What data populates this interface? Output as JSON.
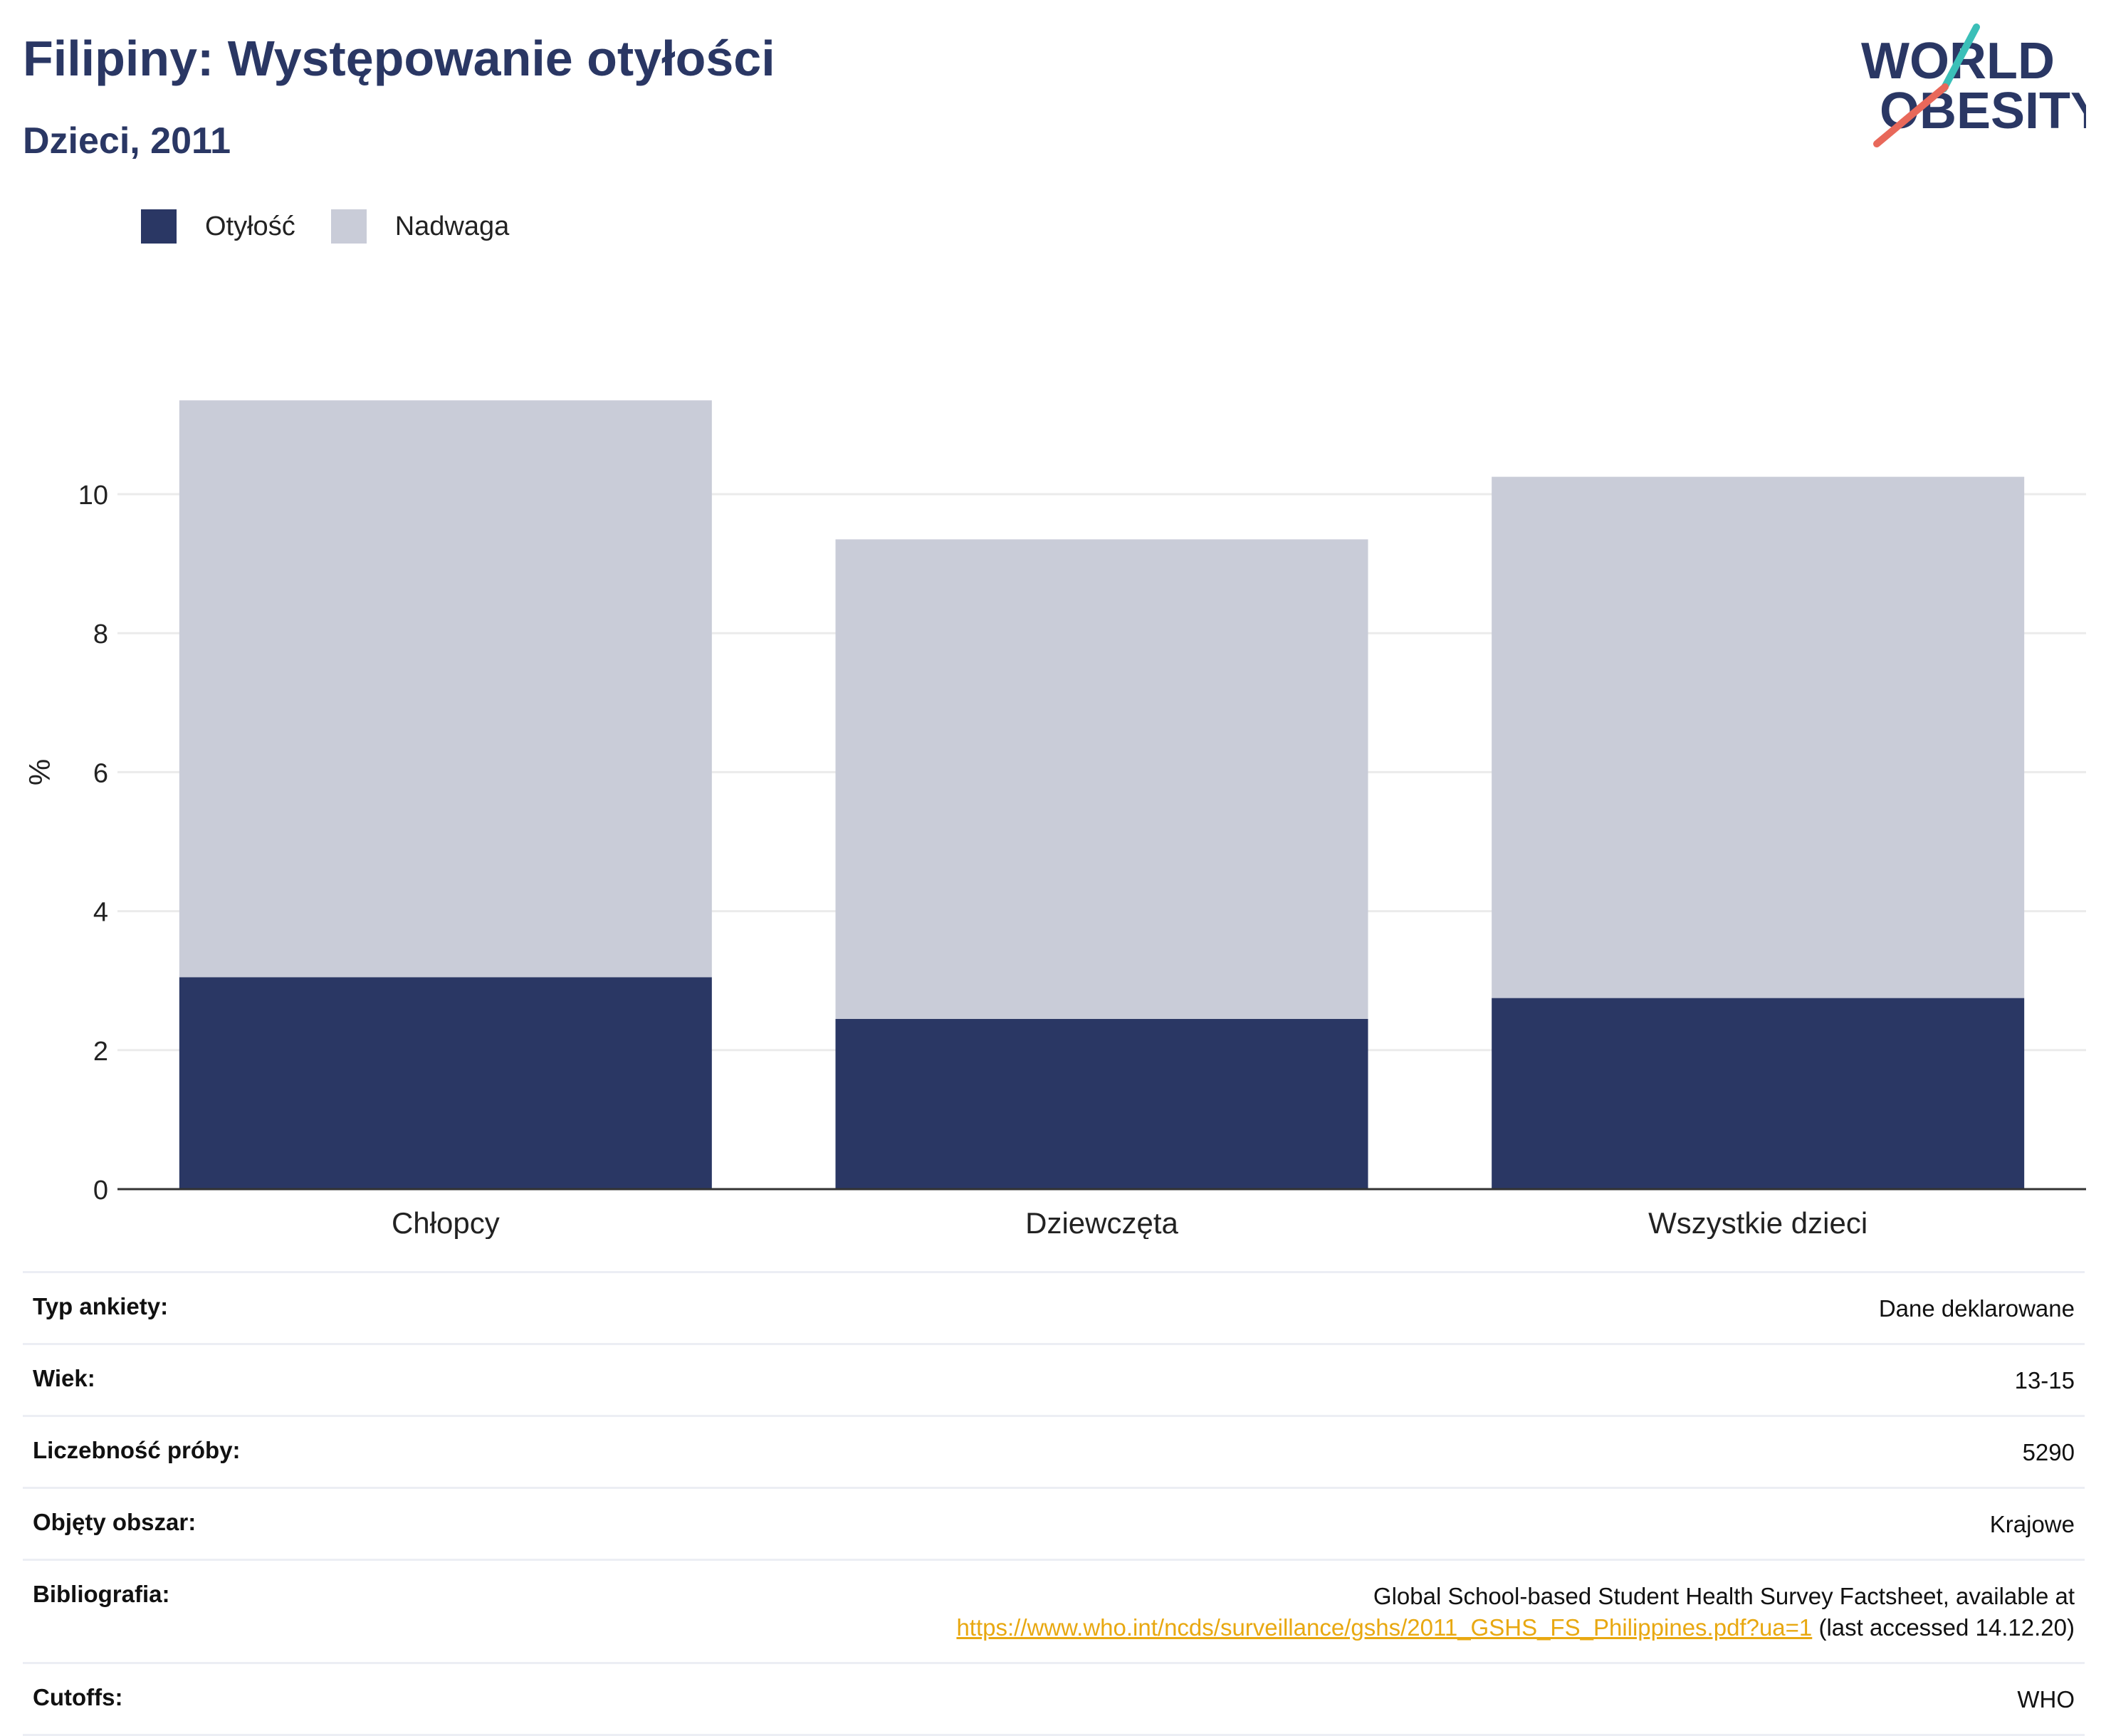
{
  "header": {
    "title": "Filipiny: Występowanie otyłości",
    "subtitle": "Dzieci, 2011"
  },
  "logo": {
    "line1": "WORLD",
    "line2": "OBESITY",
    "name": "world-obesity-logo"
  },
  "colors": {
    "obesity": "#2a3764",
    "overweight": "#c9ccd8",
    "title": "#2a3764",
    "link": "#e8a811"
  },
  "chart_data": {
    "type": "bar",
    "stacked": true,
    "categories": [
      "Chłopcy",
      "Dziewczęta",
      "Wszystkie dzieci"
    ],
    "series": [
      {
        "name": "Otyłość",
        "values": [
          3.05,
          2.45,
          2.75
        ],
        "color": "#2a3764"
      },
      {
        "name": "Nadwaga",
        "values": [
          8.3,
          6.9,
          7.5
        ],
        "color": "#c9ccd8"
      }
    ],
    "ylabel": "%",
    "xlabel": "",
    "ylim": [
      0,
      11.35
    ],
    "yticks": [
      0,
      2,
      4,
      6,
      8,
      10
    ],
    "grid": true,
    "legend_position": "top-left"
  },
  "info": {
    "rows": [
      {
        "label": "Typ ankiety:",
        "value": "Dane deklarowane"
      },
      {
        "label": "Wiek:",
        "value": "13-15"
      },
      {
        "label": "Liczebność próby:",
        "value": "5290"
      },
      {
        "label": "Objęty obszar:",
        "value": "Krajowe"
      }
    ],
    "bibliography": {
      "label": "Bibliografia:",
      "text": "Global School-based Student Health Survey Factsheet, available at",
      "url": "https://www.who.int/ncds/surveillance/gshs/2011_GSHS_FS_Philippines.pdf?ua=1",
      "suffix": " (last accessed 14.12.20)"
    },
    "cutoffs": {
      "label": "Cutoffs:",
      "value": "WHO"
    }
  }
}
